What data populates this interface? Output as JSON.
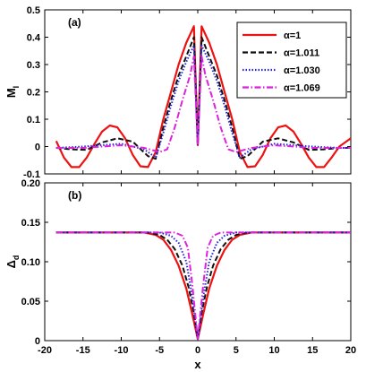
{
  "chart_data": [
    {
      "panel": "(a)",
      "type": "line",
      "ylabel": "M",
      "ylabel_sub": "l",
      "xlim": [
        -20,
        20
      ],
      "ylim": [
        -0.1,
        0.5
      ],
      "xticks": [
        "-20",
        "-15",
        "-10",
        "-5",
        "0",
        "5",
        "10",
        "15",
        "20"
      ],
      "yticks": [
        "-0.1",
        "0",
        "0.1",
        "0.2",
        "0.3",
        "0.4",
        "0.5"
      ],
      "grid": false,
      "legend_position": "top-right",
      "series": [
        {
          "name": "α=1",
          "color": "#ee1111",
          "style": "solid",
          "x": [
            -18.5,
            -17.5,
            -16.5,
            -15.5,
            -14.5,
            -13.5,
            -12.5,
            -11.5,
            -10.5,
            -9.5,
            -8.5,
            -7.5,
            -6.5,
            -5.5,
            -4.5,
            -3.5,
            -2.5,
            -1.5,
            -0.5,
            0,
            0.5,
            1.5,
            2.5,
            3.5,
            4.5,
            5.5,
            6.5,
            7.5,
            8.5,
            9.5,
            10.5,
            11.5,
            12.5,
            13.5,
            14.5,
            15.5,
            16.5,
            17.5,
            18.5,
            19.5,
            20
          ],
          "y": [
            0.02,
            -0.04,
            -0.075,
            -0.075,
            -0.04,
            0.01,
            0.055,
            0.077,
            0.07,
            0.03,
            -0.03,
            -0.072,
            -0.075,
            -0.02,
            0.1,
            0.2,
            0.3,
            0.38,
            0.44,
            0.005,
            0.44,
            0.38,
            0.3,
            0.2,
            0.1,
            -0.02,
            -0.075,
            -0.072,
            -0.03,
            0.03,
            0.07,
            0.077,
            0.055,
            0.01,
            -0.04,
            -0.075,
            -0.075,
            -0.04,
            0.0,
            0.02,
            0.03
          ]
        },
        {
          "name": "α=1.011",
          "color": "#111111",
          "style": "dashed",
          "x": [
            -18.5,
            -16.5,
            -14.5,
            -12.5,
            -10.5,
            -8.5,
            -6.5,
            -5.5,
            -4.5,
            -3.5,
            -2.5,
            -1.5,
            -0.5,
            0,
            0.5,
            1.5,
            2.5,
            3.5,
            4.5,
            5.5,
            6.5,
            8.5,
            10.5,
            12.5,
            14.5,
            16.5,
            18.5,
            20
          ],
          "y": [
            -0.005,
            -0.01,
            -0.012,
            0.015,
            0.03,
            0.018,
            -0.035,
            -0.045,
            0.07,
            0.17,
            0.26,
            0.33,
            0.4,
            0.005,
            0.4,
            0.33,
            0.26,
            0.17,
            0.07,
            -0.045,
            -0.035,
            0.018,
            0.03,
            0.015,
            -0.012,
            -0.01,
            -0.005,
            -0.005
          ]
        },
        {
          "name": "α=1.030",
          "color": "#2222dd",
          "style": "dotted",
          "x": [
            -18.5,
            -15,
            -10,
            -7,
            -5.5,
            -4.5,
            -3.5,
            -2.5,
            -1.5,
            -0.5,
            0,
            0.5,
            1.5,
            2.5,
            3.5,
            4.5,
            5.5,
            7,
            10,
            15,
            18.5,
            20
          ],
          "y": [
            -0.005,
            0.0,
            0.01,
            -0.01,
            -0.04,
            0.05,
            0.15,
            0.24,
            0.31,
            0.37,
            0.005,
            0.37,
            0.31,
            0.24,
            0.15,
            0.05,
            -0.04,
            -0.01,
            0.01,
            0.0,
            -0.005,
            -0.005
          ],
          "_": ""
        },
        {
          "name": "α=1.069",
          "color": "#dd22dd",
          "style": "dashdot",
          "x": [
            -18.5,
            -15,
            -10,
            -7,
            -5,
            -4,
            -3,
            -2,
            -1,
            -0.5,
            0,
            0.5,
            1,
            2,
            3,
            4,
            5,
            7,
            10,
            15,
            18.5,
            20
          ],
          "y": [
            -0.005,
            -0.005,
            0.005,
            -0.005,
            -0.02,
            -0.01,
            0.07,
            0.17,
            0.26,
            0.33,
            0.005,
            0.33,
            0.26,
            0.17,
            0.07,
            -0.01,
            -0.02,
            -0.005,
            0.005,
            -0.005,
            -0.005,
            -0.005
          ]
        }
      ]
    },
    {
      "panel": "(b)",
      "type": "line",
      "xlabel": "x",
      "ylabel": "Δ",
      "ylabel_sub": "d",
      "xlim": [
        -20,
        20
      ],
      "ylim": [
        0,
        0.2
      ],
      "xticks": [
        "-20",
        "-15",
        "-10",
        "-5",
        "0",
        "5",
        "10",
        "15",
        "20"
      ],
      "yticks": [
        "0",
        "0.05",
        "0.10",
        "0.15",
        "0.20"
      ],
      "grid": false,
      "series": [
        {
          "name": "α=1",
          "color": "#ee1111",
          "style": "solid",
          "x": [
            -18.5,
            -7,
            -5.5,
            -4.5,
            -3.5,
            -2.5,
            -1.5,
            -0.75,
            0,
            0.75,
            1.5,
            2.5,
            3.5,
            4.5,
            5.5,
            7,
            20
          ],
          "y": [
            0.137,
            0.137,
            0.134,
            0.128,
            0.115,
            0.095,
            0.066,
            0.035,
            0.002,
            0.035,
            0.066,
            0.095,
            0.115,
            0.128,
            0.134,
            0.137,
            0.137
          ]
        },
        {
          "name": "α=1.011",
          "color": "#111111",
          "style": "dashed",
          "x": [
            -18.5,
            -6.5,
            -5,
            -4,
            -3,
            -2,
            -1.2,
            -0.5,
            0,
            0.5,
            1.2,
            2,
            3,
            4,
            5,
            6.5,
            20
          ],
          "y": [
            0.137,
            0.137,
            0.134,
            0.128,
            0.116,
            0.095,
            0.068,
            0.035,
            0.002,
            0.035,
            0.068,
            0.095,
            0.116,
            0.128,
            0.134,
            0.137,
            0.137
          ]
        },
        {
          "name": "α=1.030",
          "color": "#2222dd",
          "style": "dotted",
          "x": [
            -18.5,
            -5,
            -3.5,
            -2.5,
            -1.5,
            -0.8,
            0,
            0.8,
            1.5,
            2.5,
            3.5,
            5,
            20
          ],
          "y": [
            0.137,
            0.137,
            0.133,
            0.124,
            0.1,
            0.06,
            0.002,
            0.06,
            0.1,
            0.124,
            0.133,
            0.137,
            0.137
          ]
        },
        {
          "name": "α=1.069",
          "color": "#dd22dd",
          "style": "dashdot",
          "x": [
            -18.5,
            -3,
            -2,
            -1.3,
            -0.7,
            0,
            0.7,
            1.3,
            2,
            3,
            20
          ],
          "y": [
            0.137,
            0.137,
            0.133,
            0.118,
            0.07,
            0.002,
            0.07,
            0.118,
            0.133,
            0.137,
            0.137
          ]
        }
      ]
    }
  ]
}
